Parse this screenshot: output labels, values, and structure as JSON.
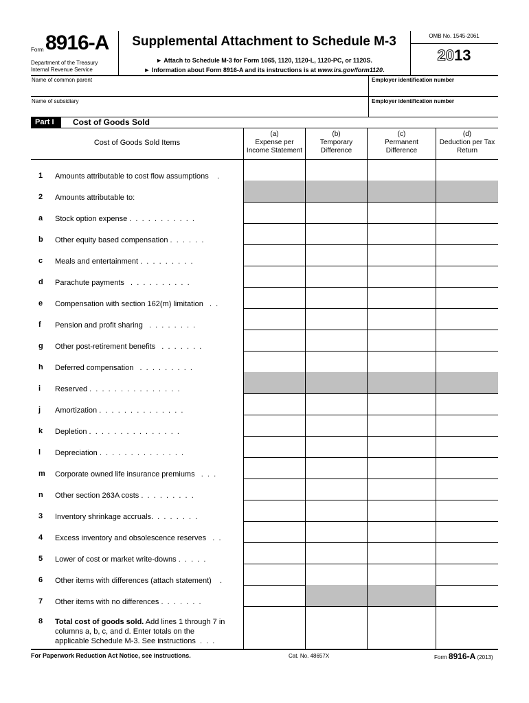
{
  "header": {
    "form_label": "Form",
    "form_number": "8916-A",
    "dept": "Department of the Treasury",
    "irs": "Internal Revenue Service",
    "title": "Supplemental Attachment to Schedule M-3",
    "instr1": "► Attach to Schedule M-3 for Form 1065, 1120, 1120-L, 1120-PC, or 1120S.",
    "instr2_pre": "► Information about Form 8916-A and its instructions is at ",
    "instr2_url": "www.irs.gov/form1120",
    "instr2_post": ".",
    "omb": "OMB No. 1545-2061",
    "year_outline": "20",
    "year_bold": "13"
  },
  "fields": {
    "common_parent": {
      "label": "Name of common parent",
      "value": ""
    },
    "ein1": {
      "label": "Employer identification number",
      "value": ""
    },
    "subsidiary": {
      "label": "Name of subsidiary",
      "value": ""
    },
    "ein2": {
      "label": "Employer identification number",
      "value": ""
    }
  },
  "part": {
    "tag": "Part I",
    "title": "Cost of Goods Sold"
  },
  "columns": {
    "items": "Cost of Goods Sold Items",
    "a": {
      "id": "(a)",
      "label": "Expense per Income Statement"
    },
    "b": {
      "id": "(b)",
      "label": "Temporary Difference"
    },
    "c": {
      "id": "(c)",
      "label": "Permanent Difference"
    },
    "d": {
      "id": "(d)",
      "label": "Deduction per Tax Return"
    }
  },
  "rows": [
    {
      "num": "1",
      "label": "Amounts attributable to cost flow assumptions    .",
      "shaded": []
    },
    {
      "num": "2",
      "label": "Amounts attributable to:",
      "shaded": [
        "a",
        "b",
        "c",
        "d"
      ]
    },
    {
      "num": "a",
      "label": "Stock option expense .  .  .  .  .  .  .  .  .  .  .",
      "shaded": []
    },
    {
      "num": "b",
      "label": "Other equity based compensation .  .  .  .  .  .",
      "shaded": []
    },
    {
      "num": "c",
      "label": "Meals and entertainment .  .  .  .  .  .  .  .  .",
      "shaded": []
    },
    {
      "num": "d",
      "label": "Parachute payments   .  .  .  .  .  .  .  .  .  .",
      "shaded": []
    },
    {
      "num": "e",
      "label": "Compensation with section 162(m) limitation   .  .",
      "shaded": []
    },
    {
      "num": "f",
      "label": "Pension and profit sharing   .  .  .  .  .  .  .  .",
      "shaded": []
    },
    {
      "num": "g",
      "label": "Other post-retirement benefits   .  .  .  .  .  .  .",
      "shaded": []
    },
    {
      "num": "h",
      "label": "Deferred compensation   .  .  .  .  .  .  .  .  .",
      "shaded": []
    },
    {
      "num": "i",
      "label": "Reserved .  .  .  .  .  .  .  .  .  .  .  .  .  .  .",
      "shaded": [
        "a",
        "b",
        "c",
        "d"
      ]
    },
    {
      "num": "j",
      "label": "Amortization .  .  .  .  .  .  .  .  .  .  .  .  .  .",
      "shaded": []
    },
    {
      "num": "k",
      "label": "Depletion .  .  .  .  .  .  .  .  .  .  .  .  .  .  .",
      "shaded": []
    },
    {
      "num": "l",
      "label": "Depreciation .  .  .  .  .  .  .  .  .  .  .  .  .  .",
      "shaded": []
    },
    {
      "num": "m",
      "label": "Corporate owned life insurance premiums   .  .  .",
      "shaded": []
    },
    {
      "num": "n",
      "label": "Other section 263A costs .  .  .  .  .  .  .  .  .",
      "shaded": []
    },
    {
      "num": "3",
      "label": "Inventory shrinkage accruals.  .  .  .  .  .  .  .",
      "shaded": []
    },
    {
      "num": "4",
      "label": "Excess inventory and obsolescence reserves   .  .",
      "shaded": []
    },
    {
      "num": "5",
      "label": "Lower of cost or market write-downs .  .  .  .  .",
      "shaded": []
    },
    {
      "num": "6",
      "label": "Other items with differences (attach statement)    .",
      "shaded": []
    },
    {
      "num": "7",
      "label": "Other items with no differences .  .  .  .  .  .  .",
      "shaded": [
        "b",
        "c"
      ]
    }
  ],
  "row8": {
    "num": "8",
    "bold": "Total cost of goods sold.",
    "rest": " Add lines 1 through 7 in\ncolumns a, b, c, and d. Enter totals on the\napplicable Schedule M-3. See instructions  .  .  ."
  },
  "footer": {
    "paperwork": "For Paperwork Reduction Act Notice, see instructions.",
    "cat": "Cat. No. 48657X",
    "form_label": "Form",
    "form_number": "8916-A",
    "year": "(2013)"
  },
  "colors": {
    "shade": "#c0c0c0"
  }
}
